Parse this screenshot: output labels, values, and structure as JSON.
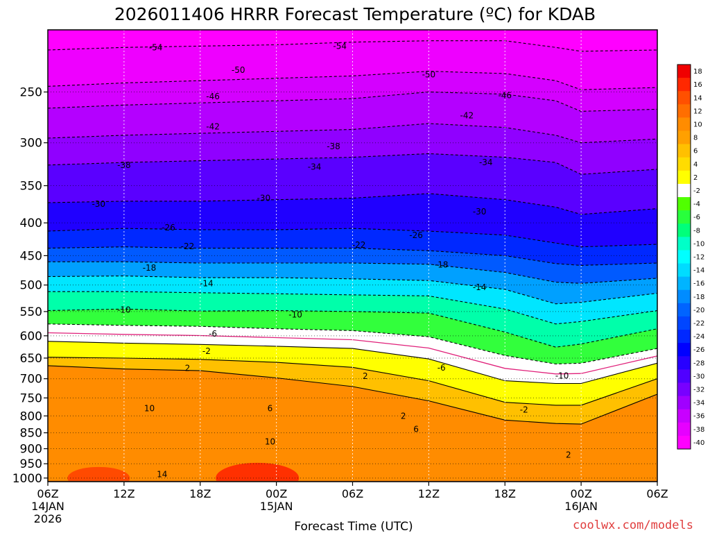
{
  "chart_data": {
    "type": "heatmap",
    "title": "2026011406 HRRR Forecast Temperature (ºC) for KDAB",
    "xlabel": "Forecast Time (UTC)",
    "ylabel": "",
    "variable": "Temperature (ºC)",
    "model": "HRRR",
    "station": "KDAB",
    "init": "2026011406",
    "x_forecast_hours": [
      0,
      6,
      12,
      18,
      24,
      30,
      36,
      42,
      48
    ],
    "x_tick_labels": [
      "06Z",
      "12Z",
      "18Z",
      "00Z",
      "06Z",
      "12Z",
      "18Z",
      "00Z",
      "06Z"
    ],
    "x_date_labels": [
      {
        "hour": 0,
        "line1": "14JAN",
        "line2": "2026"
      },
      {
        "hour": 18,
        "line1": "15JAN",
        "line2": ""
      },
      {
        "hour": 42,
        "line1": "16JAN",
        "line2": ""
      }
    ],
    "y_pressure_ticks": [
      250,
      300,
      350,
      400,
      450,
      500,
      550,
      600,
      650,
      700,
      750,
      800,
      850,
      900,
      950,
      1000
    ],
    "ylim_hpa": [
      200,
      1013
    ],
    "grid": true,
    "colorbar_levels": [
      18,
      16,
      14,
      12,
      10,
      8,
      6,
      4,
      2,
      -2,
      -4,
      -6,
      -8,
      -10,
      -12,
      -14,
      -16,
      -18,
      -20,
      -22,
      -24,
      -26,
      -28,
      -30,
      -32,
      -34,
      -36,
      -38,
      -40
    ],
    "colorbar_colors": [
      "#f00000",
      "#ff2800",
      "#ff5000",
      "#ff6e00",
      "#ff8c00",
      "#ffa000",
      "#ffc000",
      "#ffdc00",
      "#ffff00",
      "#ffffff",
      "#50ff00",
      "#28ff3c",
      "#00ff7a",
      "#00ffc8",
      "#00ffff",
      "#00dcff",
      "#00b4ff",
      "#008cff",
      "#0064ff",
      "#0046ff",
      "#0028ff",
      "#0000ff",
      "#2800ff",
      "#5000ff",
      "#7800ff",
      "#a000ff",
      "#c800ff",
      "#e600ff",
      "#ff00ff"
    ],
    "colorbar_label_values": [
      "18",
      "16",
      "14",
      "12",
      "10",
      "8",
      "6",
      "4",
      "2",
      "-2",
      "-4",
      "-6",
      "-8",
      "-10",
      "-12",
      "-14",
      "-16",
      "-18",
      "-20",
      "-22",
      "-24",
      "-26",
      "-28",
      "-30",
      "-32",
      "-34",
      "-36",
      "-38",
      "-40"
    ],
    "isotherm_profile": [
      {
        "hour": 0,
        "pressure_hpa": [
          215,
          245,
          265,
          295,
          325,
          372,
          412,
          438,
          460,
          485,
          512,
          548,
          575,
          612,
          648,
          668
        ]
      },
      {
        "hour": 6,
        "pressure_hpa": [
          213,
          242,
          262,
          292,
          322,
          370,
          408,
          436,
          460,
          484,
          512,
          545,
          578,
          616,
          650,
          676
        ]
      },
      {
        "hour": 12,
        "pressure_hpa": [
          212,
          240,
          260,
          290,
          320,
          370,
          410,
          438,
          462,
          487,
          514,
          549,
          580,
          619,
          653,
          680
        ]
      },
      {
        "hour": 18,
        "pressure_hpa": [
          211,
          238,
          258,
          288,
          318,
          368,
          410,
          438,
          462,
          487,
          516,
          548,
          585,
          623,
          660,
          698
        ]
      },
      {
        "hour": 24,
        "pressure_hpa": [
          209,
          236,
          256,
          286,
          316,
          366,
          408,
          438,
          462,
          489,
          518,
          550,
          589,
          628,
          672,
          720
        ]
      },
      {
        "hour": 30,
        "pressure_hpa": [
          208,
          232,
          250,
          280,
          312,
          360,
          412,
          442,
          464,
          492,
          520,
          553,
          602,
          652,
          705,
          758
        ]
      },
      {
        "hour": 36,
        "pressure_hpa": [
          208,
          234,
          252,
          284,
          316,
          368,
          418,
          450,
          478,
          508,
          545,
          592,
          644,
          705,
          762,
          812
        ]
      },
      {
        "hour": 40,
        "pressure_hpa": [
          213,
          240,
          258,
          292,
          322,
          378,
          430,
          463,
          495,
          535,
          575,
          625,
          664,
          712,
          770,
          822
        ]
      },
      {
        "hour": 42,
        "pressure_hpa": [
          216,
          248,
          268,
          300,
          336,
          388,
          436,
          466,
          497,
          532,
          570,
          618,
          662,
          712,
          770,
          824
        ]
      },
      {
        "hour": 48,
        "pressure_hpa": [
          215,
          246,
          266,
          296,
          330,
          380,
          432,
          462,
          488,
          515,
          548,
          585,
          628,
          662,
          700,
          740
        ]
      }
    ],
    "contour_labels": [
      {
        "value": "-54",
        "hour": 8.5,
        "pressure_hpa": 213
      },
      {
        "value": "-54",
        "hour": 23,
        "pressure_hpa": 212
      },
      {
        "value": "-50",
        "hour": 15,
        "pressure_hpa": 231
      },
      {
        "value": "-50",
        "hour": 30,
        "pressure_hpa": 235
      },
      {
        "value": "-46",
        "hour": 13,
        "pressure_hpa": 254
      },
      {
        "value": "-46",
        "hour": 36,
        "pressure_hpa": 253
      },
      {
        "value": "-42",
        "hour": 13,
        "pressure_hpa": 283
      },
      {
        "value": "-42",
        "hour": 33,
        "pressure_hpa": 272
      },
      {
        "value": "-38",
        "hour": 6,
        "pressure_hpa": 325
      },
      {
        "value": "-38",
        "hour": 22.5,
        "pressure_hpa": 304
      },
      {
        "value": "-34",
        "hour": 21,
        "pressure_hpa": 327
      },
      {
        "value": "-34",
        "hour": 34.5,
        "pressure_hpa": 322
      },
      {
        "value": "-30",
        "hour": 4,
        "pressure_hpa": 374
      },
      {
        "value": "-30",
        "hour": 17,
        "pressure_hpa": 366
      },
      {
        "value": "-30",
        "hour": 34,
        "pressure_hpa": 384
      },
      {
        "value": "-26",
        "hour": 9.5,
        "pressure_hpa": 407
      },
      {
        "value": "-26",
        "hour": 29,
        "pressure_hpa": 418
      },
      {
        "value": "-22",
        "hour": 11,
        "pressure_hpa": 435
      },
      {
        "value": "-22",
        "hour": 24.5,
        "pressure_hpa": 433
      },
      {
        "value": "-18",
        "hour": 8,
        "pressure_hpa": 470
      },
      {
        "value": "-18",
        "hour": 31,
        "pressure_hpa": 465
      },
      {
        "value": "-14",
        "hour": 12.5,
        "pressure_hpa": 497
      },
      {
        "value": "-14",
        "hour": 34,
        "pressure_hpa": 504
      },
      {
        "value": "-10",
        "hour": 6,
        "pressure_hpa": 547
      },
      {
        "value": "-10",
        "hour": 19.5,
        "pressure_hpa": 556
      },
      {
        "value": "-10",
        "hour": 40.5,
        "pressure_hpa": 693
      },
      {
        "value": "-6",
        "hour": 13,
        "pressure_hpa": 596
      },
      {
        "value": "-6",
        "hour": 31,
        "pressure_hpa": 673
      },
      {
        "value": "-2",
        "hour": 12.5,
        "pressure_hpa": 634
      },
      {
        "value": "-2",
        "hour": 37.5,
        "pressure_hpa": 783
      },
      {
        "value": "2",
        "hour": 11,
        "pressure_hpa": 674
      },
      {
        "value": "2",
        "hour": 25,
        "pressure_hpa": 694
      },
      {
        "value": "2",
        "hour": 28,
        "pressure_hpa": 800
      },
      {
        "value": "2",
        "hour": 41,
        "pressure_hpa": 920
      },
      {
        "value": "6",
        "hour": 17.5,
        "pressure_hpa": 779
      },
      {
        "value": "6",
        "hour": 29,
        "pressure_hpa": 839
      },
      {
        "value": "10",
        "hour": 8,
        "pressure_hpa": 779
      },
      {
        "value": "10",
        "hour": 17.5,
        "pressure_hpa": 878
      },
      {
        "value": "14",
        "hour": 9,
        "pressure_hpa": 987
      }
    ],
    "ground_color": "#a0522d",
    "footer_credit": "coolwx.com/models"
  }
}
